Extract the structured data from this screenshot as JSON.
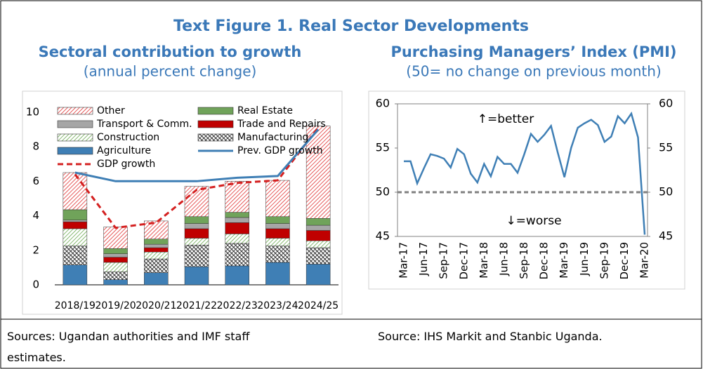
{
  "title": "Text Figure 1. Real Sector Developments",
  "chart_data": [
    {
      "type": "bar",
      "stacked": true,
      "title": "Sectoral contribution to growth",
      "subtitle": "(annual percent change)",
      "categories": [
        "2018/19",
        "2019/20",
        "2020/21",
        "2021/22",
        "2022/23",
        "2023/24",
        "2024/25"
      ],
      "series": [
        {
          "name": "Agriculture",
          "color": "#3f7fb5",
          "hatch": "solid",
          "values": [
            1.15,
            0.3,
            0.7,
            1.05,
            1.1,
            1.3,
            1.2
          ]
        },
        {
          "name": "Manufacturing",
          "color": "#222222",
          "hatch": "cross",
          "values": [
            1.1,
            0.45,
            0.8,
            1.25,
            1.3,
            0.95,
            0.95
          ]
        },
        {
          "name": "Construction",
          "color": "#6aa84f",
          "hatch": "diagonal",
          "values": [
            1.0,
            0.55,
            0.4,
            0.4,
            0.55,
            0.45,
            0.4
          ]
        },
        {
          "name": "Trade and Repairs",
          "color": "#c00000",
          "hatch": "solid",
          "values": [
            0.4,
            0.3,
            0.25,
            0.55,
            0.65,
            0.55,
            0.6
          ]
        },
        {
          "name": "Transport & Comm.",
          "color": "#a6a6a6",
          "hatch": "solid",
          "values": [
            0.1,
            0.2,
            0.2,
            0.3,
            0.3,
            0.3,
            0.3
          ]
        },
        {
          "name": "Real Estate",
          "color": "#70a35a",
          "hatch": "solid",
          "values": [
            0.6,
            0.3,
            0.3,
            0.4,
            0.3,
            0.4,
            0.4
          ]
        },
        {
          "name": "Other",
          "color": "#e03030",
          "hatch": "diagonal",
          "values": [
            2.15,
            1.25,
            1.05,
            1.75,
            1.8,
            2.1,
            5.35
          ]
        },
        {
          "name": "GDP growth",
          "type": "line",
          "color": "#d42020",
          "dashed": true,
          "values": [
            6.4,
            3.3,
            3.6,
            5.5,
            5.9,
            6.05,
            9.1
          ]
        },
        {
          "name": "Prev. GDP growth",
          "type": "line",
          "color": "#3f7fb5",
          "dashed": false,
          "values": [
            6.5,
            6.0,
            6.0,
            6.0,
            6.2,
            6.3,
            9.0
          ]
        }
      ],
      "ylim": [
        0,
        10.4
      ],
      "yticks": [
        0,
        2,
        4,
        6,
        8,
        10
      ],
      "grid": false,
      "source": "Sources: Ugandan authorities and IMF staff estimates."
    },
    {
      "type": "line",
      "title": "Purchasing Managers’ Index (PMI)",
      "subtitle": "(50= no change on previous month)",
      "categories": [
        "Mar-17",
        null,
        null,
        "Jun-17",
        null,
        null,
        "Sep-17",
        null,
        null,
        "Dec-17",
        null,
        null,
        "Mar-18",
        null,
        null,
        "Jun-18",
        null,
        null,
        "Sep-18",
        null,
        null,
        "Dec-18",
        null,
        null,
        "Mar-19",
        null,
        null,
        "Jun-19",
        null,
        null,
        "Sep-19",
        null,
        null,
        "Dec-19",
        null,
        null,
        "Mar-20"
      ],
      "values": [
        53.5,
        53.5,
        51.0,
        52.7,
        54.3,
        54.1,
        53.8,
        52.8,
        54.9,
        54.3,
        52.1,
        51.1,
        53.2,
        51.8,
        54.0,
        53.2,
        53.2,
        52.2,
        54.3,
        56.6,
        55.7,
        56.5,
        57.5,
        54.5,
        51.7,
        55.0,
        57.3,
        57.8,
        58.2,
        57.6,
        55.7,
        56.3,
        58.6,
        57.8,
        58.9,
        56.2,
        45.2
      ],
      "color": "#3f7fb5",
      "reference_line": 50,
      "reference_color": "#808080",
      "ylim": [
        45,
        60
      ],
      "yticks": [
        45,
        50,
        55,
        60
      ],
      "y2lim": [
        45,
        60
      ],
      "y2ticks": [
        45,
        50,
        55,
        60
      ],
      "annotations": [
        "↑=better",
        "↓=worse"
      ],
      "source": "Source: IHS Markit and Stanbic Uganda."
    }
  ]
}
